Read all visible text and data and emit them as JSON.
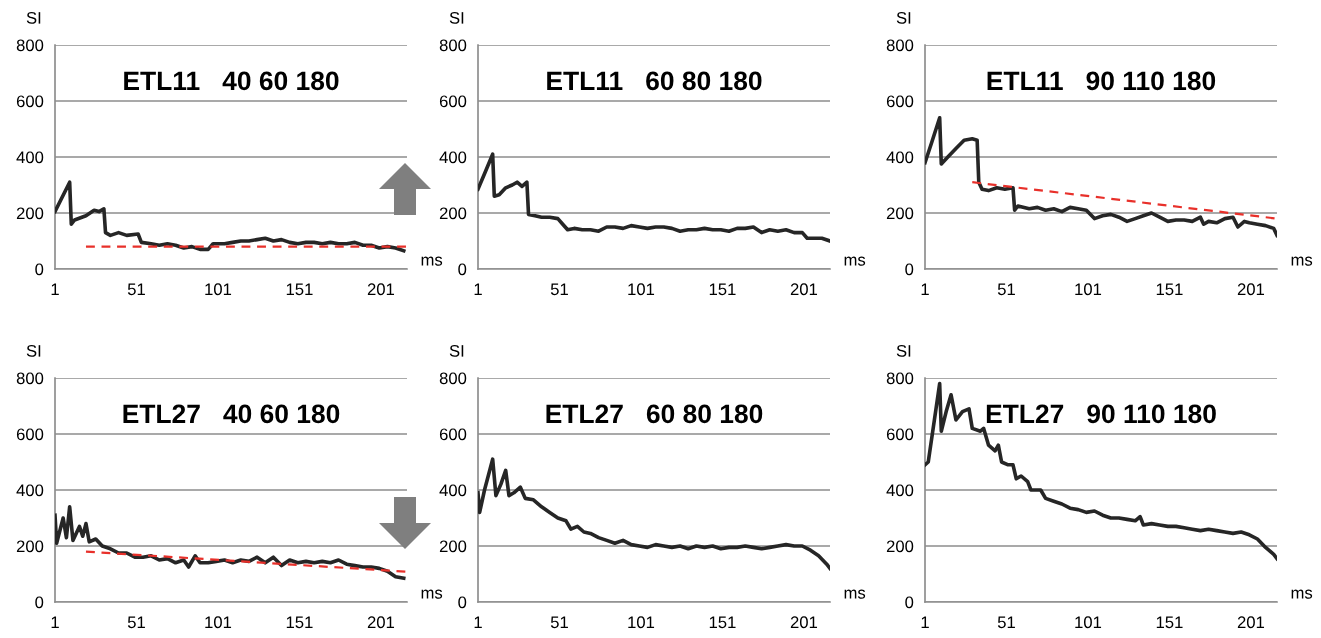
{
  "chart_data": [
    {
      "type": "line",
      "title": "ETL11   40 60 180",
      "xlabel": "ms",
      "ylabel": "SI",
      "xlim": [
        1,
        217
      ],
      "xticks": [
        1,
        51,
        101,
        151,
        201
      ],
      "ylim": [
        0,
        800
      ],
      "yticks": [
        0,
        200,
        400,
        600,
        800
      ],
      "grid": "y",
      "series": [
        {
          "color": "#262626",
          "x": [
            1,
            10,
            11,
            13,
            20,
            25,
            28,
            31,
            32,
            35,
            40,
            45,
            52,
            54,
            60,
            65,
            70,
            75,
            80,
            85,
            90,
            95,
            98,
            105,
            110,
            115,
            120,
            125,
            130,
            135,
            140,
            145,
            150,
            155,
            160,
            165,
            170,
            175,
            180,
            185,
            190,
            195,
            200,
            205,
            210,
            215
          ],
          "values": [
            205,
            310,
            160,
            175,
            190,
            210,
            205,
            215,
            130,
            120,
            130,
            120,
            125,
            95,
            90,
            85,
            90,
            85,
            75,
            80,
            70,
            70,
            90,
            90,
            95,
            100,
            100,
            105,
            110,
            100,
            105,
            95,
            90,
            95,
            95,
            90,
            95,
            90,
            90,
            95,
            85,
            85,
            75,
            80,
            75,
            65
          ]
        },
        {
          "color": "#e8302a",
          "line_style": "dashed",
          "x": [
            20,
            217
          ],
          "values": [
            80,
            80
          ]
        }
      ]
    },
    {
      "type": "line",
      "title": "ETL11   60 80 180",
      "xlabel": "ms",
      "ylabel": "SI",
      "xlim": [
        1,
        217
      ],
      "xticks": [
        1,
        51,
        101,
        151,
        201
      ],
      "ylim": [
        0,
        800
      ],
      "yticks": [
        0,
        200,
        400,
        600,
        800
      ],
      "grid": "y",
      "series": [
        {
          "color": "#262626",
          "x": [
            1,
            5,
            10,
            11,
            14,
            18,
            22,
            25,
            28,
            31,
            32,
            36,
            40,
            45,
            50,
            53,
            56,
            60,
            65,
            70,
            75,
            80,
            85,
            90,
            95,
            100,
            105,
            110,
            115,
            120,
            125,
            130,
            135,
            140,
            145,
            150,
            155,
            160,
            165,
            170,
            175,
            180,
            185,
            190,
            195,
            200,
            203,
            207,
            212,
            217
          ],
          "values": [
            285,
            340,
            410,
            260,
            265,
            290,
            300,
            310,
            295,
            310,
            195,
            190,
            185,
            185,
            180,
            160,
            140,
            145,
            140,
            140,
            135,
            150,
            150,
            145,
            155,
            150,
            145,
            150,
            150,
            145,
            135,
            140,
            140,
            145,
            140,
            140,
            135,
            145,
            145,
            150,
            130,
            140,
            135,
            140,
            130,
            130,
            110,
            110,
            110,
            100
          ]
        }
      ]
    },
    {
      "type": "line",
      "title": "ETL11   90 110 180",
      "xlabel": "ms",
      "ylabel": "SI",
      "xlim": [
        1,
        217
      ],
      "xticks": [
        1,
        51,
        101,
        151,
        201
      ],
      "ylim": [
        0,
        800
      ],
      "yticks": [
        0,
        200,
        400,
        600,
        800
      ],
      "grid": "y",
      "series": [
        {
          "color": "#262626",
          "x": [
            1,
            5,
            10,
            11,
            15,
            20,
            25,
            30,
            33,
            34,
            36,
            40,
            45,
            50,
            55,
            56,
            58,
            65,
            70,
            75,
            80,
            85,
            90,
            95,
            100,
            105,
            110,
            115,
            120,
            125,
            130,
            135,
            140,
            145,
            150,
            155,
            160,
            165,
            170,
            172,
            175,
            180,
            185,
            190,
            193,
            197,
            200,
            205,
            210,
            215,
            217
          ],
          "values": [
            380,
            450,
            540,
            375,
            400,
            430,
            460,
            465,
            460,
            310,
            285,
            280,
            290,
            285,
            290,
            210,
            225,
            215,
            220,
            210,
            215,
            205,
            220,
            215,
            210,
            180,
            190,
            195,
            185,
            170,
            180,
            190,
            200,
            185,
            170,
            175,
            175,
            170,
            185,
            160,
            170,
            165,
            180,
            185,
            150,
            170,
            165,
            160,
            155,
            145,
            120
          ]
        },
        {
          "color": "#e8302a",
          "line_style": "dashed",
          "x": [
            30,
            217
          ],
          "values": [
            310,
            180
          ]
        }
      ]
    },
    {
      "type": "line",
      "title": "ETL27   40 60 180",
      "xlabel": "ms",
      "ylabel": "SI",
      "xlim": [
        1,
        217
      ],
      "xticks": [
        1,
        51,
        101,
        151,
        201
      ],
      "ylim": [
        0,
        800
      ],
      "yticks": [
        0,
        200,
        400,
        600,
        800
      ],
      "grid": "y",
      "series": [
        {
          "color": "#262626",
          "x": [
            1,
            2,
            6,
            8,
            10,
            12,
            16,
            18,
            20,
            22,
            26,
            30,
            35,
            40,
            45,
            50,
            55,
            60,
            65,
            70,
            75,
            80,
            83,
            87,
            90,
            95,
            100,
            105,
            110,
            115,
            120,
            125,
            130,
            135,
            140,
            145,
            150,
            155,
            160,
            165,
            170,
            175,
            180,
            185,
            190,
            195,
            200,
            205,
            210,
            215
          ],
          "values": [
            310,
            210,
            300,
            230,
            340,
            220,
            270,
            235,
            280,
            215,
            225,
            200,
            190,
            175,
            175,
            160,
            160,
            165,
            150,
            155,
            140,
            150,
            125,
            165,
            140,
            140,
            145,
            150,
            140,
            150,
            145,
            160,
            140,
            160,
            130,
            150,
            140,
            145,
            140,
            145,
            140,
            150,
            135,
            130,
            125,
            125,
            120,
            110,
            90,
            85
          ]
        },
        {
          "color": "#e8302a",
          "line_style": "dashed",
          "x": [
            20,
            217
          ],
          "values": [
            180,
            108
          ]
        }
      ]
    },
    {
      "type": "line",
      "title": "ETL27   60 80 180",
      "xlabel": "ms",
      "ylabel": "SI",
      "xlim": [
        1,
        217
      ],
      "xticks": [
        1,
        51,
        101,
        151,
        201
      ],
      "ylim": [
        0,
        800
      ],
      "yticks": [
        0,
        200,
        400,
        600,
        800
      ],
      "grid": "y",
      "series": [
        {
          "color": "#262626",
          "x": [
            1,
            2,
            5,
            10,
            12,
            15,
            18,
            20,
            23,
            27,
            30,
            35,
            40,
            45,
            50,
            55,
            58,
            62,
            66,
            70,
            75,
            80,
            85,
            90,
            95,
            100,
            105,
            110,
            115,
            120,
            125,
            130,
            135,
            140,
            145,
            150,
            155,
            160,
            165,
            170,
            175,
            180,
            185,
            190,
            195,
            200,
            205,
            210,
            215,
            217
          ],
          "values": [
            390,
            320,
            400,
            510,
            380,
            420,
            470,
            380,
            390,
            410,
            370,
            365,
            340,
            320,
            300,
            290,
            260,
            270,
            250,
            245,
            230,
            220,
            210,
            220,
            205,
            200,
            195,
            205,
            200,
            195,
            200,
            190,
            200,
            195,
            200,
            190,
            195,
            195,
            200,
            195,
            190,
            195,
            200,
            205,
            200,
            200,
            185,
            165,
            135,
            120
          ]
        }
      ]
    },
    {
      "type": "line",
      "title": "ETL27   90 110 180",
      "xlabel": "ms",
      "ylabel": "SI",
      "xlim": [
        1,
        217
      ],
      "xticks": [
        1,
        51,
        101,
        151,
        201
      ],
      "ylim": [
        0,
        800
      ],
      "yticks": [
        0,
        200,
        400,
        600,
        800
      ],
      "grid": "y",
      "series": [
        {
          "color": "#262626",
          "x": [
            1,
            3,
            7,
            10,
            11,
            14,
            17,
            20,
            24,
            28,
            30,
            35,
            37,
            40,
            44,
            46,
            48,
            52,
            55,
            57,
            60,
            64,
            66,
            72,
            75,
            80,
            85,
            90,
            95,
            100,
            105,
            110,
            115,
            120,
            125,
            130,
            133,
            135,
            140,
            145,
            150,
            155,
            160,
            165,
            170,
            175,
            180,
            185,
            190,
            195,
            200,
            205,
            210,
            215,
            217
          ],
          "values": [
            490,
            500,
            660,
            780,
            610,
            680,
            740,
            650,
            680,
            690,
            620,
            610,
            620,
            560,
            540,
            560,
            500,
            490,
            490,
            440,
            450,
            430,
            400,
            400,
            370,
            360,
            350,
            335,
            330,
            320,
            325,
            310,
            300,
            300,
            295,
            290,
            305,
            275,
            280,
            275,
            270,
            270,
            265,
            260,
            255,
            260,
            255,
            250,
            245,
            250,
            240,
            225,
            195,
            170,
            155
          ]
        }
      ]
    }
  ]
}
